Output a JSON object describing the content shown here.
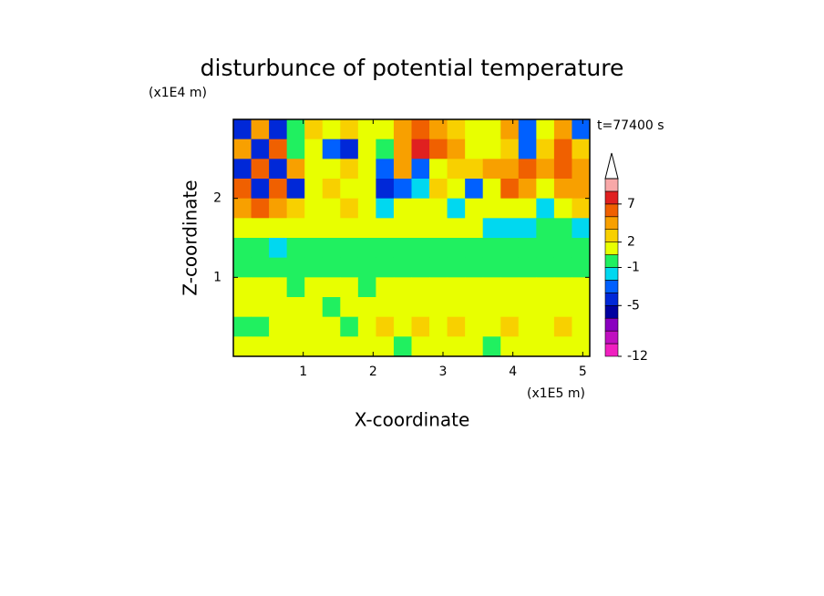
{
  "chart_data": {
    "type": "contour",
    "title": "disturbunce of potential temperature",
    "y_unit": "(x1E4 m)",
    "x_unit": "(x1E5 m)",
    "time_label": "t=77400 s",
    "xlabel": "X-coordinate",
    "ylabel": "Z-coordinate",
    "xlim": [
      0,
      5.1
    ],
    "ylim": [
      0,
      3.0
    ],
    "xticks": [
      1,
      2,
      3,
      4,
      5
    ],
    "yticks": [
      1,
      2
    ],
    "field": [
      [
        -5,
        3,
        -5,
        -1,
        2,
        1,
        2,
        0,
        1,
        3,
        5,
        3,
        2,
        1,
        1,
        3,
        -4,
        1,
        3,
        -4
      ],
      [
        3,
        -5,
        5,
        -1,
        1,
        -4,
        -5,
        1,
        -1,
        3,
        7,
        5,
        3,
        1,
        1,
        2,
        -4,
        2,
        5,
        2
      ],
      [
        -5,
        5,
        -5,
        3,
        1,
        1,
        2,
        1,
        -4,
        3,
        -4,
        1,
        2,
        2,
        3,
        3,
        5,
        3,
        5,
        3
      ],
      [
        5,
        -5,
        5,
        -5,
        1,
        2,
        1,
        1,
        -5,
        -4,
        -3,
        2,
        1,
        -4,
        1,
        5,
        3,
        1,
        3,
        3
      ],
      [
        3,
        5,
        3,
        2,
        1,
        1,
        2,
        1,
        -3,
        1,
        1,
        1,
        -2,
        1,
        1,
        1,
        1,
        -2,
        1,
        2
      ],
      [
        1,
        1,
        1,
        1,
        1,
        1,
        1,
        1,
        1,
        1,
        1,
        1,
        1,
        1,
        -2,
        -2,
        -2,
        -1,
        -1,
        -2
      ],
      [
        -1,
        -1,
        -2,
        -1,
        -0.5,
        -0.5,
        -0.5,
        -0.5,
        -0.5,
        -0.5,
        -1,
        -1,
        -1,
        -1,
        -1,
        -1,
        -1,
        -1,
        -1,
        -1
      ],
      [
        -0.5,
        -0.5,
        -0.5,
        -0.5,
        -0.5,
        -0.5,
        -0.5,
        -0.5,
        -0.5,
        -0.5,
        -0.5,
        -0.5,
        -0.5,
        -0.5,
        -0.5,
        -0.5,
        -0.5,
        -0.5,
        -0.5,
        -0.5
      ],
      [
        1,
        1,
        1,
        -0.5,
        1,
        1,
        1,
        -0.5,
        1,
        1,
        1,
        1,
        1,
        1,
        1,
        1,
        1,
        1,
        1,
        1
      ],
      [
        1,
        1,
        1,
        1,
        1,
        -0.5,
        1,
        1,
        1,
        1,
        1,
        1,
        1,
        1,
        1,
        1,
        1,
        1,
        1,
        1
      ],
      [
        -0.5,
        -0.5,
        1,
        1,
        1,
        1,
        -0.5,
        1,
        2.5,
        1,
        2.5,
        1,
        2.5,
        1,
        1,
        2.5,
        1,
        1,
        2.5,
        1
      ],
      [
        1,
        1,
        1,
        1,
        1,
        1,
        1,
        1,
        1,
        -0.5,
        1,
        1,
        1,
        1,
        -0.5,
        1,
        1,
        1,
        1,
        1
      ]
    ],
    "colorbar": {
      "levels": [
        -12,
        -10,
        -8,
        -7,
        -5,
        -4,
        -3,
        -1,
        0,
        2,
        3,
        5,
        7,
        9,
        11
      ],
      "colors": [
        "#f020c0",
        "#c010c0",
        "#8a00c0",
        "#0000a0",
        "#0028d8",
        "#0060ff",
        "#00d8f0",
        "#20f060",
        "#e8ff00",
        "#f8d000",
        "#f8a000",
        "#f06000",
        "#e02020",
        "#f8a8a8"
      ],
      "ticks": [
        -12,
        -5,
        -1,
        2,
        7
      ]
    }
  }
}
